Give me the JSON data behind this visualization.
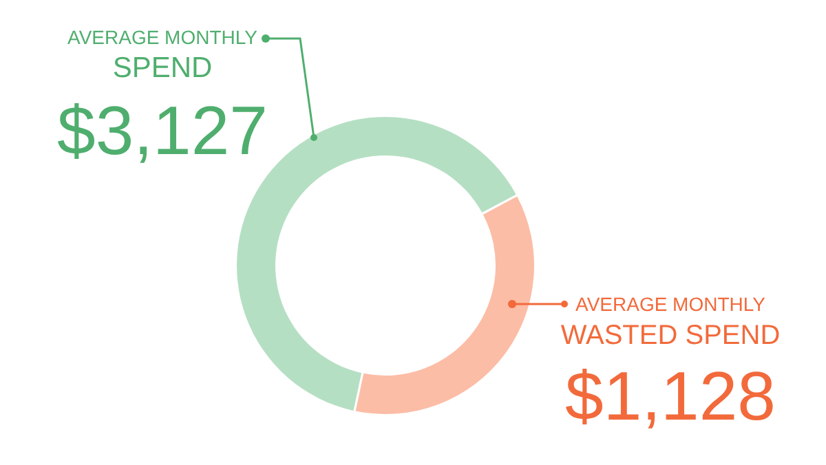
{
  "chart_data": {
    "type": "donut",
    "categories": [
      "AVERAGE MONTHLY SPEND",
      "AVERAGE MONTHLY WASTED SPEND"
    ],
    "values": [
      63.9,
      36.1
    ],
    "colors": [
      "#b5dfc3",
      "#fcbda6"
    ],
    "annotations": [
      "$3,127",
      "$1,128"
    ]
  }
}
